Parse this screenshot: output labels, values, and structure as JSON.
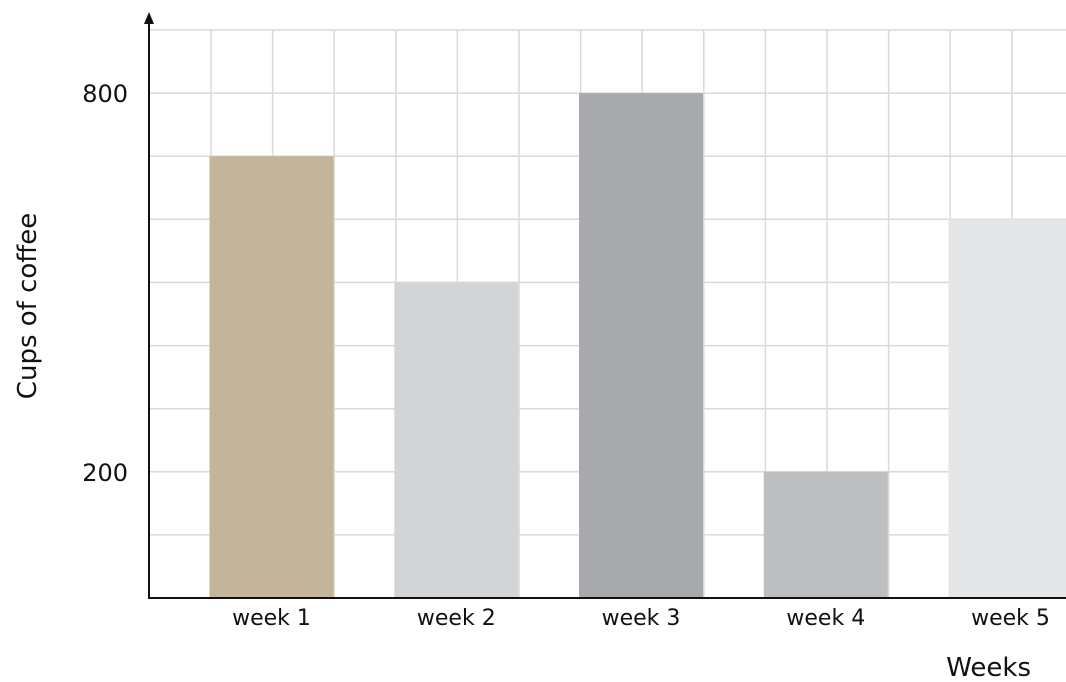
{
  "chart_data": {
    "type": "bar",
    "title": "",
    "xlabel": "Weeks",
    "ylabel": "Cups of coffee",
    "categories": [
      "week 1",
      "week 2",
      "week 3",
      "week 4",
      "week 5"
    ],
    "values": [
      700,
      500,
      800,
      200,
      600
    ],
    "bar_colors": [
      "#c2b59b",
      "#d3d4d6",
      "#a7a9ac",
      "#bcbec0",
      "#e5e6e7"
    ],
    "yticks": [
      200,
      800
    ],
    "ylim": [
      0,
      900
    ],
    "grid": true,
    "legend": "none"
  }
}
